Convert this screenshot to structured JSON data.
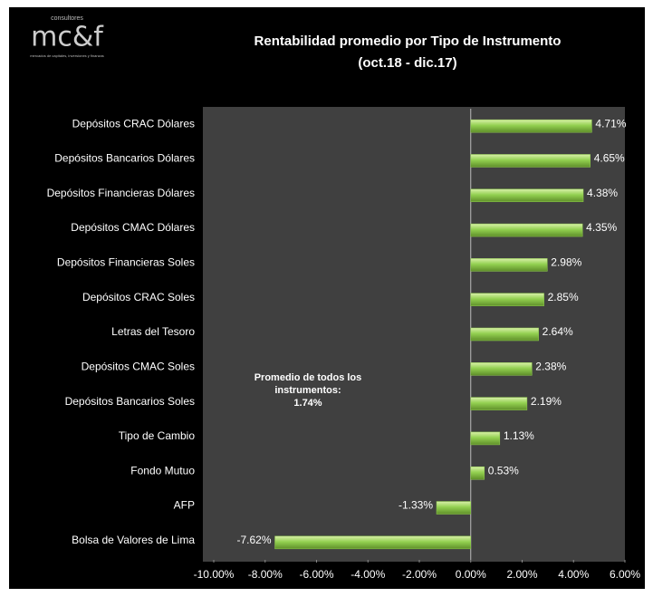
{
  "logo": {
    "top": "consultores",
    "mark": "mc&f",
    "tagline": "mercados de capitales, inversiones y finanzas"
  },
  "chart_data": {
    "type": "hbar",
    "title": "Rentabilidad promedio por Tipo de Instrumento",
    "subtitle": "(oct.18 - dic.17)",
    "annotation": [
      "Promedio de todos los",
      "instrumentos:",
      "1.74%"
    ],
    "categories": [
      "Depósitos CRAC Dólares",
      "Depósitos Bancarios Dólares",
      "Depósitos Financieras Dólares",
      "Depósitos CMAC Dólares",
      "Depósitos Financieras Soles",
      "Depósitos CRAC Soles",
      "Letras del Tesoro",
      "Depósitos CMAC Soles",
      "Depósitos Bancarios Soles",
      "Tipo de Cambio",
      "Fondo Mutuo",
      "AFP",
      "Bolsa de Valores de Lima"
    ],
    "values": [
      4.71,
      4.65,
      4.38,
      4.35,
      2.98,
      2.85,
      2.64,
      2.38,
      2.19,
      1.13,
      0.53,
      -1.33,
      -7.62
    ],
    "value_labels": [
      "4.71%",
      "4.65%",
      "4.38%",
      "4.35%",
      "2.98%",
      "2.85%",
      "2.64%",
      "2.38%",
      "2.19%",
      "1.13%",
      "0.53%",
      "-1.33%",
      "-7.62%"
    ],
    "color": "#92d050",
    "xlim": [
      -10,
      6
    ],
    "xticks": [
      {
        "value": -10,
        "label": "-10.00%"
      },
      {
        "value": -8,
        "label": "-8.00%"
      },
      {
        "value": -6,
        "label": "-6.00%"
      },
      {
        "value": -4,
        "label": "-4.00%"
      },
      {
        "value": -2,
        "label": "-2.00%"
      },
      {
        "value": 0,
        "label": "0.00%"
      },
      {
        "value": 2,
        "label": "2.00%"
      },
      {
        "value": 4,
        "label": "4.00%"
      },
      {
        "value": 6,
        "label": "6.00%"
      }
    ]
  }
}
